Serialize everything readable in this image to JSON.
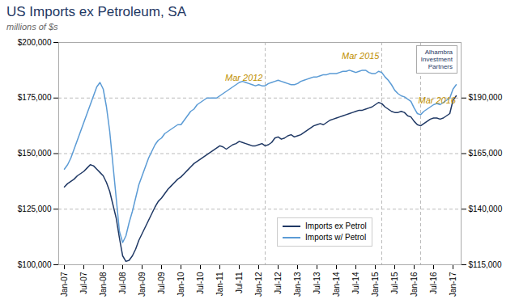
{
  "chart_data": {
    "type": "line",
    "title": "US Imports ex Petroleum, SA",
    "subtitle": "millions of $s",
    "categories": [
      "Jan-07",
      null,
      null,
      null,
      null,
      null,
      "Jul-07",
      null,
      null,
      null,
      null,
      null,
      "Jan-08",
      null,
      null,
      null,
      null,
      null,
      "Jul-08",
      null,
      null,
      null,
      null,
      null,
      "Jan-09",
      null,
      null,
      null,
      null,
      null,
      "Jul-09",
      null,
      null,
      null,
      null,
      null,
      "Jan-10",
      null,
      null,
      null,
      null,
      null,
      "Jul-10",
      null,
      null,
      null,
      null,
      null,
      "Jan-11",
      null,
      null,
      null,
      null,
      null,
      "Jul-11",
      null,
      null,
      null,
      null,
      null,
      "Jan-12",
      null,
      null,
      null,
      null,
      null,
      "Jul-12",
      null,
      null,
      null,
      null,
      null,
      "Jan-13",
      null,
      null,
      null,
      null,
      null,
      "Jul-13",
      null,
      null,
      null,
      null,
      null,
      "Jan-14",
      null,
      null,
      null,
      null,
      null,
      "Jul-14",
      null,
      null,
      null,
      null,
      null,
      "Jan-15",
      null,
      null,
      null,
      null,
      null,
      "Jul-15",
      null,
      null,
      null,
      null,
      null,
      "Jan-16",
      null,
      null,
      null,
      null,
      null,
      "Jul-16",
      null,
      null,
      null,
      null,
      null,
      "Jan-17",
      null
    ],
    "series": [
      {
        "name": "Imports ex Petrol",
        "color": "#1f3864",
        "values": [
          135000,
          136500,
          137500,
          138500,
          140000,
          141000,
          142000,
          143500,
          145000,
          144500,
          143000,
          141500,
          140000,
          137000,
          133000,
          127000,
          121000,
          112000,
          104000,
          101500,
          102000,
          104000,
          107000,
          111000,
          114000,
          117000,
          120000,
          123000,
          126000,
          128500,
          130000,
          132000,
          134000,
          135500,
          137000,
          138500,
          139500,
          141000,
          142500,
          144000,
          145500,
          146500,
          147500,
          148500,
          149500,
          150500,
          151500,
          152500,
          153500,
          153000,
          152000,
          153000,
          154000,
          154500,
          155500,
          155000,
          154500,
          154000,
          153500,
          153500,
          154000,
          154500,
          153500,
          154000,
          155000,
          157000,
          157500,
          156500,
          157000,
          158000,
          158500,
          157500,
          158000,
          158500,
          159500,
          160500,
          161500,
          162500,
          163000,
          163500,
          163000,
          164000,
          165000,
          165500,
          166000,
          166500,
          167000,
          167500,
          168000,
          168500,
          169000,
          169500,
          169500,
          170000,
          170500,
          171000,
          172000,
          173000,
          172500,
          171000,
          170000,
          169000,
          168500,
          168500,
          169000,
          168500,
          167000,
          166500,
          164500,
          163000,
          162500,
          163500,
          164500,
          165500,
          166000,
          166000,
          165500,
          166000,
          167000,
          168000,
          174000,
          176000
        ]
      },
      {
        "name": "Imports w/ Petrol",
        "color": "#5b9bd5",
        "values": [
          143000,
          145000,
          148000,
          152000,
          156000,
          160000,
          164000,
          168000,
          172000,
          176000,
          180000,
          182000,
          179000,
          171000,
          160000,
          145000,
          130000,
          115000,
          110000,
          113000,
          119000,
          124000,
          130000,
          136000,
          140000,
          144000,
          148000,
          151000,
          154000,
          156000,
          157000,
          159000,
          160000,
          161000,
          162000,
          163000,
          163000,
          165000,
          167000,
          169000,
          170000,
          172000,
          173000,
          174000,
          175000,
          175000,
          175000,
          175000,
          176000,
          177000,
          178000,
          179000,
          180000,
          181000,
          182000,
          182500,
          182000,
          181500,
          181000,
          180500,
          181000,
          180500,
          180500,
          181500,
          182000,
          182500,
          183000,
          182500,
          182000,
          181500,
          181000,
          181000,
          181500,
          182500,
          183000,
          183500,
          184000,
          184500,
          184500,
          185000,
          185500,
          185500,
          186000,
          186000,
          186000,
          186500,
          187000,
          187000,
          187500,
          187000,
          186500,
          187000,
          187500,
          187500,
          186500,
          186000,
          186000,
          187000,
          186500,
          184500,
          183000,
          181000,
          178500,
          177000,
          176000,
          175500,
          174500,
          173500,
          170500,
          168000,
          167500,
          169000,
          170000,
          171000,
          172000,
          172500,
          172000,
          173000,
          174000,
          175000,
          179000,
          181000
        ]
      }
    ],
    "ylim": [
      100000,
      200000
    ],
    "yticks": [
      {
        "value": 100000,
        "label": "$100,000"
      },
      {
        "value": 125000,
        "label": "$125,000"
      },
      {
        "value": 150000,
        "label": "$150,000"
      },
      {
        "value": 175000,
        "label": "$175,000"
      },
      {
        "value": 200000,
        "label": "$200,000"
      }
    ],
    "y2lim": [
      115000,
      215000
    ],
    "y2ticks": [
      {
        "value": 115000,
        "label": "$115,000"
      },
      {
        "value": 140000,
        "label": "$140,000"
      },
      {
        "value": 165000,
        "label": "$165,000"
      },
      {
        "value": 190000,
        "label": "$190,000"
      }
    ],
    "grid": true,
    "legend": "lower right",
    "annotations": [
      {
        "text": "Mar 2012",
        "x": 62,
        "y": 182000,
        "color": "#bf9000"
      },
      {
        "text": "Mar 2015",
        "x": 98,
        "y": 192000,
        "color": "#bf9000"
      },
      {
        "text": "Mar 2016",
        "x": 110,
        "y": 172000,
        "color": "#bf9000"
      },
      {
        "text": "Alhambra\nInvestment\nPartners"
      }
    ]
  }
}
